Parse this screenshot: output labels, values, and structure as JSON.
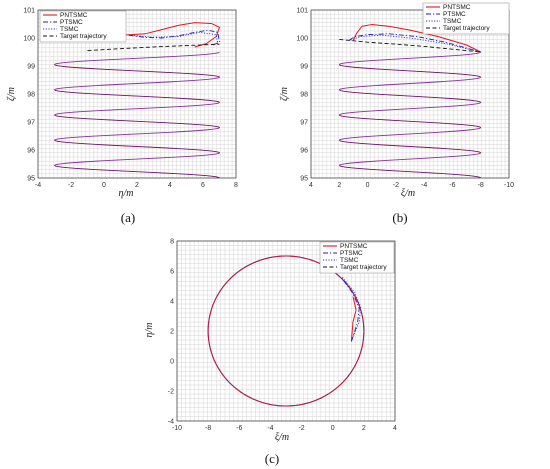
{
  "colors": {
    "pntsmc": "#e8141c",
    "ptsmc": "#1f1fb4",
    "tsmc": "#3333dd",
    "target": "#111111",
    "spiral_purple": "#8a2fa0"
  },
  "chart_data": [
    {
      "id": "a",
      "type": "line",
      "panel_label": "(a)",
      "xlabel": "η/m",
      "ylabel": "ζ/m",
      "xlim": [
        -4,
        8
      ],
      "ylim": [
        95,
        101
      ],
      "xticks": [
        -4,
        -2,
        0,
        2,
        4,
        6,
        8
      ],
      "yticks": [
        95,
        96,
        97,
        98,
        99,
        100,
        101
      ],
      "grid": true,
      "legend_position": "top-left",
      "legend": [
        "PNTSMC",
        "PTSMC",
        "TSMC",
        "Target trajectory"
      ],
      "series": [
        {
          "name": "PNTSMC",
          "style": "solid",
          "color_key": "pntsmc",
          "points": [
            [
              -0.5,
              100.05
            ],
            [
              1,
              100.1
            ],
            [
              2.5,
              100.15
            ],
            [
              3.5,
              100.3
            ],
            [
              4.5,
              100.45
            ],
            [
              5.5,
              100.55
            ],
            [
              6.5,
              100.52
            ],
            [
              7.0,
              100.38
            ],
            [
              6.8,
              100.05
            ],
            [
              6.2,
              99.8
            ],
            [
              5.5,
              99.68
            ]
          ]
        },
        {
          "name": "PTSMC",
          "style": "dashdot",
          "color_key": "ptsmc",
          "points": [
            [
              1.5,
              100.1
            ],
            [
              2.5,
              100.02
            ],
            [
              3.5,
              100.0
            ],
            [
              4.5,
              100.08
            ],
            [
              5.5,
              100.2
            ],
            [
              6.3,
              100.28
            ],
            [
              6.9,
              100.2
            ],
            [
              7.0,
              99.85
            ],
            [
              6.5,
              99.72
            ]
          ]
        },
        {
          "name": "TSMC",
          "style": "dotted",
          "color_key": "tsmc",
          "points": [
            [
              1.5,
              100.1
            ],
            [
              3,
              100.03
            ],
            [
              4.5,
              100.05
            ],
            [
              5.8,
              100.2
            ],
            [
              6.8,
              100.12
            ],
            [
              6.9,
              99.8
            ]
          ]
        },
        {
          "name": "Target trajectory",
          "style": "dashed",
          "color_key": "target",
          "points": [
            [
              -1,
              99.55
            ],
            [
              1,
              99.62
            ],
            [
              3,
              99.68
            ],
            [
              5,
              99.73
            ],
            [
              7,
              99.78
            ]
          ]
        }
      ]
    },
    {
      "id": "b",
      "type": "line",
      "panel_label": "(b)",
      "xlabel": "ξ/m",
      "ylabel": "ζ/m",
      "xlim": [
        4,
        -10
      ],
      "ylim": [
        95,
        101
      ],
      "xticks": [
        4,
        2,
        0,
        -2,
        -4,
        -6,
        -8,
        -10
      ],
      "yticks": [
        95,
        96,
        97,
        98,
        99,
        100,
        101
      ],
      "grid": true,
      "legend_position": "top-right",
      "legend": [
        "PNTSMC",
        "PTSMC",
        "TSMC",
        "Target trajectory"
      ],
      "series": [
        {
          "name": "PNTSMC",
          "style": "solid",
          "color_key": "pntsmc",
          "points": [
            [
              1.0,
              99.92
            ],
            [
              0.8,
              100.15
            ],
            [
              0.4,
              100.42
            ],
            [
              -0.3,
              100.48
            ],
            [
              -1.5,
              100.42
            ],
            [
              -3,
              100.28
            ],
            [
              -5,
              100.05
            ],
            [
              -7,
              99.75
            ],
            [
              -8,
              99.5
            ]
          ]
        },
        {
          "name": "PTSMC",
          "style": "dashdot",
          "color_key": "ptsmc",
          "points": [
            [
              1.3,
              99.92
            ],
            [
              0.9,
              100.05
            ],
            [
              0,
              100.12
            ],
            [
              -1.5,
              100.15
            ],
            [
              -3.5,
              100.05
            ],
            [
              -5.5,
              99.85
            ],
            [
              -8,
              99.5
            ]
          ]
        },
        {
          "name": "TSMC",
          "style": "dotted",
          "color_key": "tsmc",
          "points": [
            [
              1.2,
              99.92
            ],
            [
              0.5,
              100.05
            ],
            [
              -1,
              100.1
            ],
            [
              -3,
              100.0
            ],
            [
              -5.5,
              99.8
            ],
            [
              -8,
              99.5
            ]
          ]
        },
        {
          "name": "Target trajectory",
          "style": "dashed",
          "color_key": "target",
          "points": [
            [
              2,
              99.95
            ],
            [
              0,
              99.85
            ],
            [
              -2,
              99.78
            ],
            [
              -4,
              99.7
            ],
            [
              -6,
              99.6
            ],
            [
              -8,
              99.5
            ]
          ]
        }
      ]
    },
    {
      "id": "c",
      "type": "line",
      "panel_label": "(c)",
      "xlabel": "ξ/m",
      "ylabel": "η/m",
      "xlim": [
        -10,
        4
      ],
      "ylim": [
        -4,
        8
      ],
      "xticks": [
        -10,
        -8,
        -6,
        -4,
        -2,
        0,
        2,
        4
      ],
      "yticks": [
        -4,
        -2,
        0,
        2,
        4,
        6,
        8
      ],
      "grid": true,
      "legend_position": "top-right",
      "legend": [
        "PNTSMC",
        "PTSMC",
        "TSMC",
        "Target trajectory"
      ],
      "circle": {
        "center": [
          -3,
          2
        ],
        "radius": 5
      },
      "series": [
        {
          "name": "PNTSMC",
          "style": "solid",
          "color_key": "pntsmc",
          "points": [
            [
              1.2,
              1.3
            ],
            [
              1.3,
              2.6
            ],
            [
              1.5,
              3.4
            ],
            [
              1.3,
              4.3
            ]
          ]
        },
        {
          "name": "PTSMC",
          "style": "dashdot",
          "color_key": "ptsmc",
          "points": [
            [
              1.2,
              1.3
            ],
            [
              1.6,
              2.6
            ],
            [
              1.7,
              3.5
            ],
            [
              1.3,
              4.5
            ],
            [
              0.6,
              5.5
            ]
          ]
        },
        {
          "name": "TSMC",
          "style": "dotted",
          "color_key": "tsmc",
          "points": [
            [
              1.2,
              1.3
            ],
            [
              1.7,
              2.6
            ],
            [
              1.8,
              3.6
            ],
            [
              1.4,
              4.6
            ],
            [
              0.6,
              5.6
            ]
          ]
        }
      ]
    }
  ]
}
